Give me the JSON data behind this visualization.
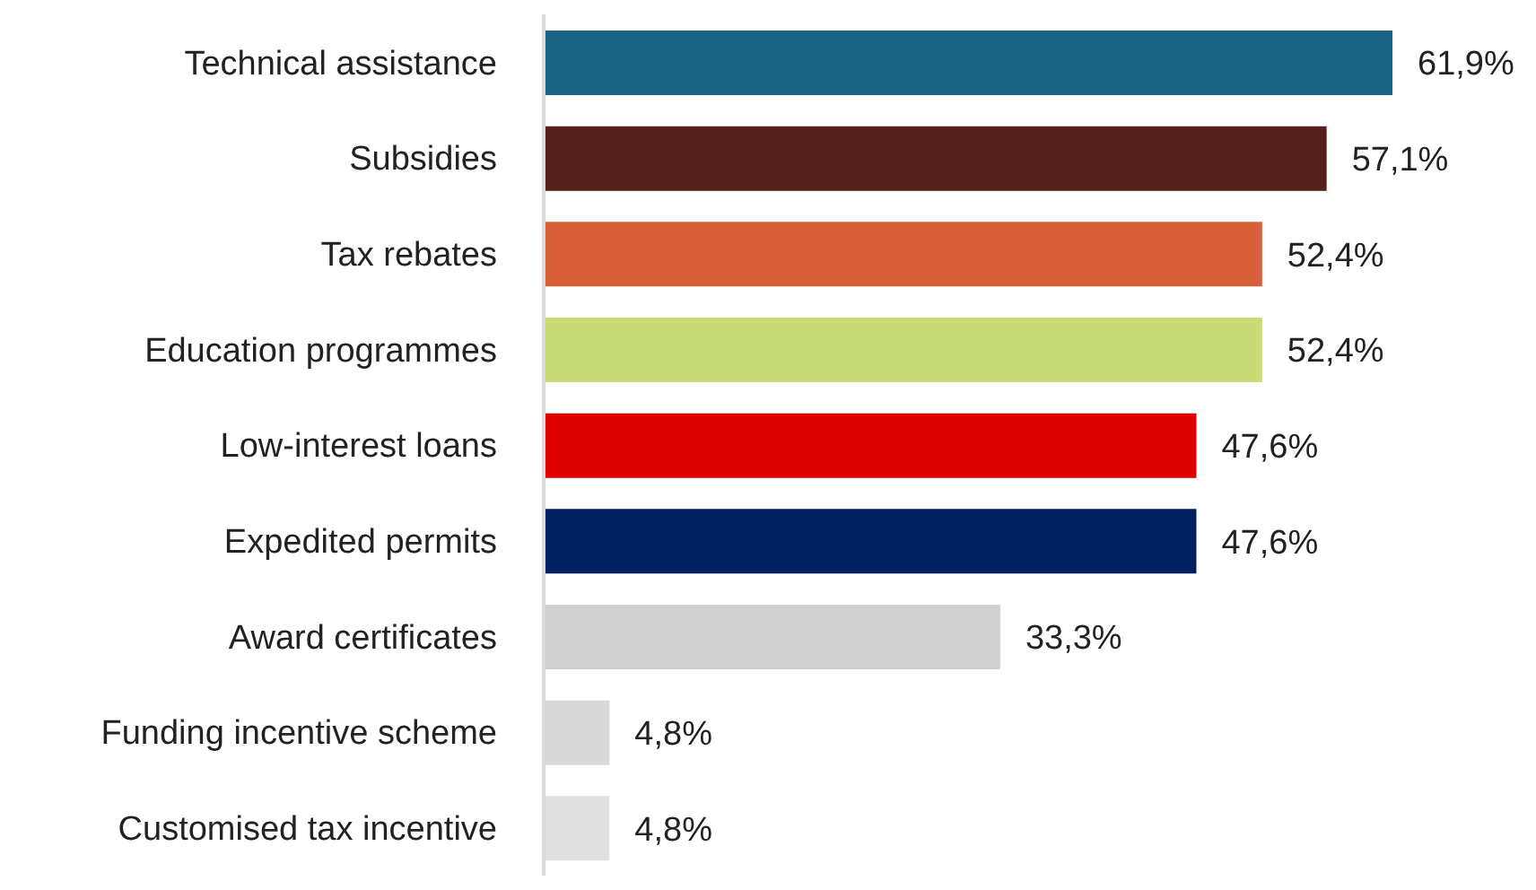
{
  "chart_data": {
    "type": "bar",
    "orientation": "horizontal",
    "categories": [
      "Technical assistance",
      "Subsidies",
      "Tax rebates",
      "Education programmes",
      "Low-interest loans",
      "Expedited permits",
      "Award certificates",
      "Funding incentive scheme",
      "Customised tax incentive "
    ],
    "values": [
      61.9,
      57.1,
      52.4,
      52.4,
      47.6,
      47.6,
      33.3,
      4.8,
      4.8
    ],
    "colors": [
      "#1a6286",
      "#58201b",
      "#d95f3b",
      "#c9db74",
      "#e00000",
      "#00205f",
      "#d0d0d0",
      "#d9d9d9",
      "#e0e0e0"
    ],
    "value_labels": [
      "61,9%",
      "57,1%",
      "52,4%",
      "52,4%",
      "47,6%",
      "47,6%",
      "33,3%",
      "4,8%",
      "4,8%"
    ],
    "grid": false,
    "legend": false
  }
}
